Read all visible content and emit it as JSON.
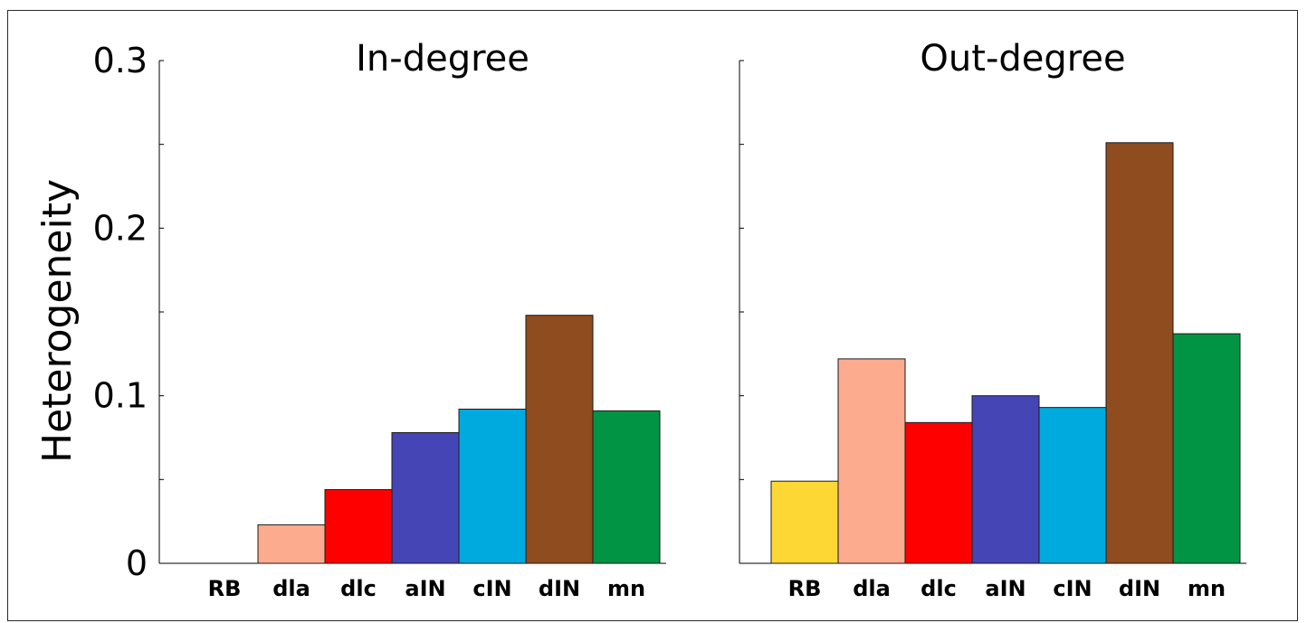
{
  "chart_data": {
    "type": "bar",
    "ylabel": "Heterogeneity",
    "ylim": [
      0,
      0.3
    ],
    "yticks": [
      0,
      0.1,
      0.2,
      0.3
    ],
    "ytick_labels": [
      "0",
      "0.1",
      "0.2",
      "0.3"
    ],
    "categories": [
      "RB",
      "dla",
      "dlc",
      "aIN",
      "cIN",
      "dIN",
      "mn"
    ],
    "colors": [
      "#FDD835",
      "#FDAB8E",
      "#FF0000",
      "#4545B5",
      "#00AADF",
      "#8E4C1F",
      "#009444"
    ],
    "panels": [
      {
        "title": "In-degree",
        "values": [
          0,
          0.023,
          0.044,
          0.078,
          0.092,
          0.148,
          0.091
        ]
      },
      {
        "title": "Out-degree",
        "values": [
          0.049,
          0.122,
          0.084,
          0.1,
          0.093,
          0.251,
          0.137
        ]
      }
    ],
    "grid": false,
    "legend": "none"
  }
}
